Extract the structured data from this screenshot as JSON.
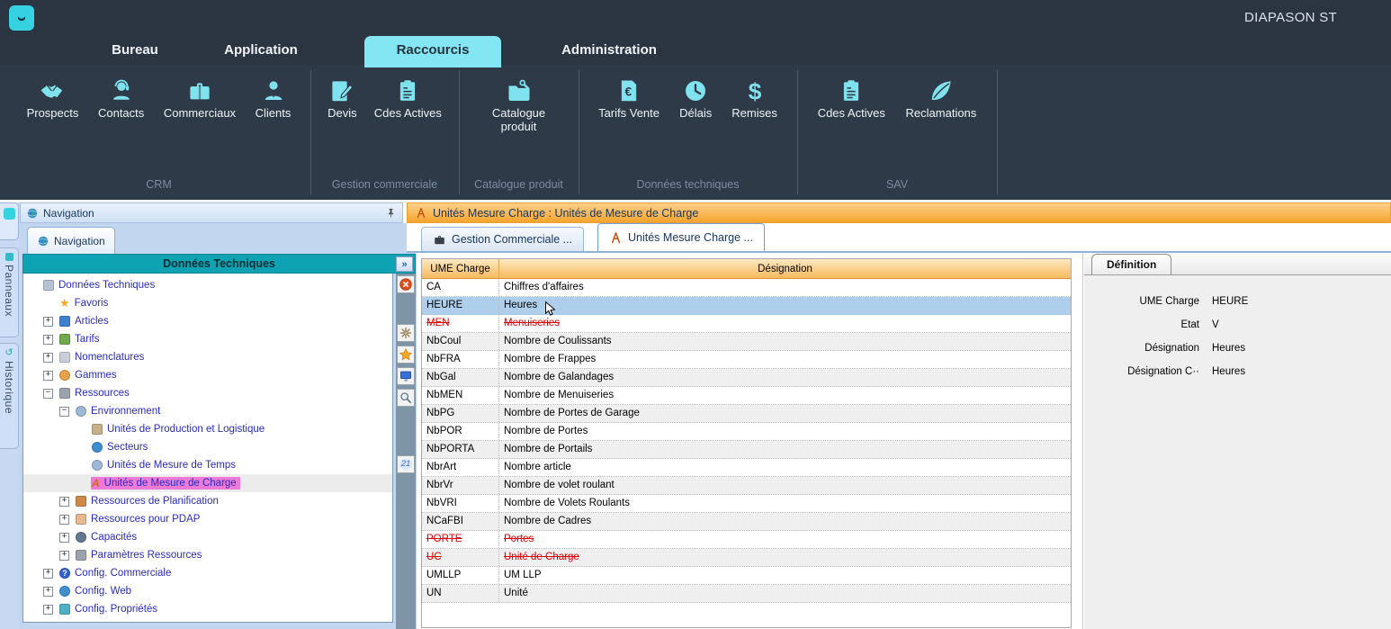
{
  "window": {
    "title": "DIAPASON ST"
  },
  "ribbon": {
    "tabs": [
      {
        "label": "Bureau",
        "selected": false
      },
      {
        "label": "Application",
        "selected": false
      },
      {
        "label": "Raccourcis",
        "selected": true
      },
      {
        "label": "Administration",
        "selected": false
      }
    ],
    "groups": [
      {
        "label": "CRM",
        "items": [
          {
            "label": "Prospects",
            "icon": "handshake-icon"
          },
          {
            "label": "Contacts",
            "icon": "headset-icon"
          },
          {
            "label": "Commerciaux",
            "icon": "briefcase-icon"
          },
          {
            "label": "Clients",
            "icon": "person-icon"
          }
        ]
      },
      {
        "label": "Gestion commerciale",
        "items": [
          {
            "label": "Devis",
            "icon": "document-pencil-icon"
          },
          {
            "label": "Cdes Actives",
            "icon": "clipboard-icon"
          }
        ]
      },
      {
        "label": "Catalogue produit",
        "items": [
          {
            "label": "Catalogue produit",
            "icon": "folder-wrench-icon"
          }
        ]
      },
      {
        "label": "Données techniques",
        "items": [
          {
            "label": "Tarifs Vente",
            "icon": "document-euro-icon"
          },
          {
            "label": "Délais",
            "icon": "clock-icon"
          },
          {
            "label": "Remises",
            "icon": "dollar-icon"
          }
        ]
      },
      {
        "label": "SAV",
        "items": [
          {
            "label": "Cdes Actives",
            "icon": "clipboard-icon"
          },
          {
            "label": "Reclamations",
            "icon": "leaf-icon"
          }
        ]
      }
    ]
  },
  "side_strip": {
    "panneaux_label": "Panneaux",
    "historique_label": "Historique"
  },
  "navigation": {
    "title": "Navigation",
    "tab_label": "Navigation",
    "header": "Données Techniques",
    "expand_button": "»",
    "tree": [
      {
        "label": "Données Techniques",
        "level": 0,
        "expand": "none",
        "icon": "list-icon",
        "color": "#b8c4d4",
        "selected": false
      },
      {
        "label": "Favoris",
        "level": 1,
        "expand": "none",
        "icon": "star-icon",
        "color": "#f6a821",
        "selected": false
      },
      {
        "label": "Articles",
        "level": 1,
        "expand": "+",
        "icon": "books-icon",
        "color": "#3f7fd0",
        "selected": false
      },
      {
        "label": "Tarifs",
        "level": 1,
        "expand": "+",
        "icon": "hand-money-icon",
        "color": "#6faa50",
        "selected": false
      },
      {
        "label": "Nomenclatures",
        "level": 1,
        "expand": "+",
        "icon": "list-icon",
        "color": "#c8cfd8",
        "selected": false
      },
      {
        "label": "Gammes",
        "level": 1,
        "expand": "+",
        "icon": "dotted-circle-icon",
        "color": "#e8a24a",
        "selected": false
      },
      {
        "label": "Ressources",
        "level": 1,
        "expand": "-",
        "icon": "wrench-icon",
        "color": "#9aa3ad",
        "selected": false
      },
      {
        "label": "Environnement",
        "level": 2,
        "expand": "-",
        "icon": "clock-icon",
        "color": "#9db9d8",
        "selected": false
      },
      {
        "label": "Unités de Production et Logistique",
        "level": 3,
        "expand": "none",
        "icon": "factory-icon",
        "color": "#c8b08a",
        "selected": false
      },
      {
        "label": "Secteurs",
        "level": 3,
        "expand": "none",
        "icon": "globe-icon",
        "color": "#3f8fd0",
        "selected": false
      },
      {
        "label": "Unités de Mesure de Temps",
        "level": 3,
        "expand": "none",
        "icon": "clock-icon",
        "color": "#9db9d8",
        "selected": false
      },
      {
        "label": "Unités de Mesure de Charge",
        "level": 3,
        "expand": "none",
        "icon": "compass-icon",
        "color": "#e07830",
        "selected": true
      },
      {
        "label": "Ressources de Planification",
        "level": 2,
        "expand": "+",
        "icon": "people-icon",
        "color": "#d08848",
        "selected": false
      },
      {
        "label": "Ressources pour PDAP",
        "level": 2,
        "expand": "+",
        "icon": "person-icon",
        "color": "#e8b890",
        "selected": false
      },
      {
        "label": "Capacités",
        "level": 2,
        "expand": "+",
        "icon": "gear-icon",
        "color": "#607890",
        "selected": false
      },
      {
        "label": "Paramètres Ressources",
        "level": 2,
        "expand": "+",
        "icon": "wrench-icon",
        "color": "#9aa3ad",
        "selected": false
      },
      {
        "label": "Config. Commerciale",
        "level": 1,
        "expand": "+",
        "icon": "question-icon",
        "color": "#2f5fd0",
        "selected": false
      },
      {
        "label": "Config. Web",
        "level": 1,
        "expand": "+",
        "icon": "globe-icon",
        "color": "#3f8fd0",
        "selected": false
      },
      {
        "label": "Config. Propriétés",
        "level": 1,
        "expand": "+",
        "icon": "books-icon",
        "color": "#50b0c8",
        "selected": false
      }
    ]
  },
  "tree_toolbar": {
    "calendar_label": "21"
  },
  "main": {
    "header_title": "Unités Mesure Charge : Unités de Mesure de Charge",
    "doc_tabs": [
      {
        "label": "Gestion Commerciale ...",
        "icon": "briefcase-dark-icon",
        "active": false
      },
      {
        "label": "Unités Mesure Charge ...",
        "icon": "compass-icon",
        "active": true
      }
    ],
    "table": {
      "columns": [
        "UME Charge",
        "Désignation"
      ],
      "rows": [
        {
          "code": "CA",
          "designation": "Chiffres d'affaires",
          "state": "normal"
        },
        {
          "code": "HEURE",
          "designation": "Heures",
          "state": "selected"
        },
        {
          "code": "MEN",
          "designation": "Menuiseries",
          "state": "deleted"
        },
        {
          "code": "NbCoul",
          "designation": "Nombre de Coulissants",
          "state": "normal"
        },
        {
          "code": "NbFRA",
          "designation": "Nombre de Frappes",
          "state": "normal"
        },
        {
          "code": "NbGal",
          "designation": "Nombre de Galandages",
          "state": "normal"
        },
        {
          "code": "NbMEN",
          "designation": "Nombre de Menuiseries",
          "state": "normal"
        },
        {
          "code": "NbPG",
          "designation": "Nombre de Portes de Garage",
          "state": "normal"
        },
        {
          "code": "NbPOR",
          "designation": "Nombre de Portes",
          "state": "normal"
        },
        {
          "code": "NbPORTA",
          "designation": "Nombre de Portails",
          "state": "normal"
        },
        {
          "code": "NbrArt",
          "designation": "Nombre article",
          "state": "normal"
        },
        {
          "code": "NbrVr",
          "designation": "Nombre de volet roulant",
          "state": "normal"
        },
        {
          "code": "NbVRI",
          "designation": "Nombre de Volets Roulants",
          "state": "normal"
        },
        {
          "code": "NCaFBI",
          "designation": "Nombre de Cadres",
          "state": "normal"
        },
        {
          "code": "PORTE",
          "designation": "Portes",
          "state": "deleted"
        },
        {
          "code": "UC",
          "designation": "Unité de Charge",
          "state": "deleted"
        },
        {
          "code": "UMLLP",
          "designation": "UM LLP",
          "state": "normal"
        },
        {
          "code": "UN",
          "designation": "Unité",
          "state": "normal"
        }
      ]
    }
  },
  "definition": {
    "tab_label": "Définition",
    "fields": [
      {
        "label": "UME Charge",
        "value": "HEURE"
      },
      {
        "label": "Etat",
        "value": "V"
      },
      {
        "label": "Désignation",
        "value": "Heures"
      },
      {
        "label": "Désignation C··",
        "value": "Heures"
      }
    ]
  },
  "colors": {
    "accent_cyan": "#7fe2ee",
    "ribbon_bg": "#2e3a48",
    "teal_header": "#0fa2b2",
    "orange_header": "#f5a838",
    "selection_pink": "#ee7ad8",
    "selection_blue": "#aecfeb",
    "deleted_red": "#e00000",
    "tree_text": "#2a2ac0"
  }
}
